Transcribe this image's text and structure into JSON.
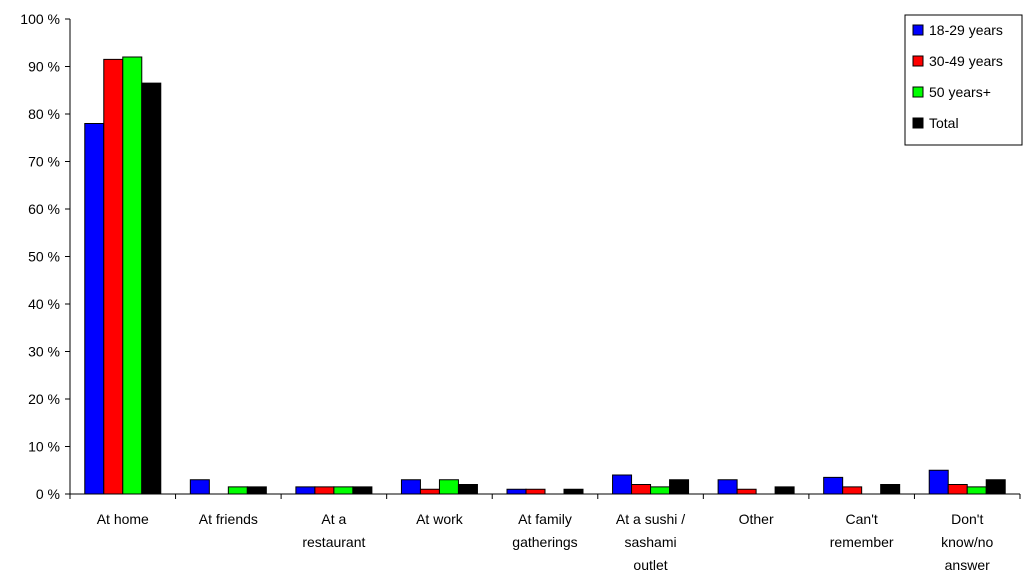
{
  "chart_data": {
    "type": "bar",
    "ylim": [
      0,
      100
    ],
    "y_tick_labels": [
      "0 %",
      "10 %",
      "20 %",
      "30 %",
      "40 %",
      "50 %",
      "60 %",
      "70 %",
      "80 %",
      "90 %",
      "100 %"
    ],
    "categories": [
      [
        "At home"
      ],
      [
        "At friends"
      ],
      [
        "At a",
        "restaurant"
      ],
      [
        "At work"
      ],
      [
        "At family",
        "gatherings"
      ],
      [
        "At a sushi /",
        "sashami",
        "outlet"
      ],
      [
        "Other"
      ],
      [
        "Can't",
        "remember"
      ],
      [
        "Don't",
        "know/no",
        "answer"
      ]
    ],
    "series": [
      {
        "name": "18-29 years",
        "color": "#0000FF",
        "values": [
          78,
          3,
          1.5,
          3,
          1,
          4,
          3,
          3.5,
          5
        ]
      },
      {
        "name": "30-49 years",
        "color": "#FF0000",
        "values": [
          91.5,
          0,
          1.5,
          1,
          1,
          2,
          1,
          1.5,
          2
        ]
      },
      {
        "name": "50 years+",
        "color": "#00FF00",
        "values": [
          92,
          1.5,
          1.5,
          3,
          0,
          1.5,
          0,
          0,
          1.5
        ]
      },
      {
        "name": "Total",
        "color": "#000000",
        "values": [
          86.5,
          1.5,
          1.5,
          2,
          1,
          3,
          1.5,
          2,
          3
        ]
      }
    ],
    "grid": false,
    "legend_position": "top-right",
    "title": "",
    "xlabel": "",
    "ylabel": ""
  }
}
